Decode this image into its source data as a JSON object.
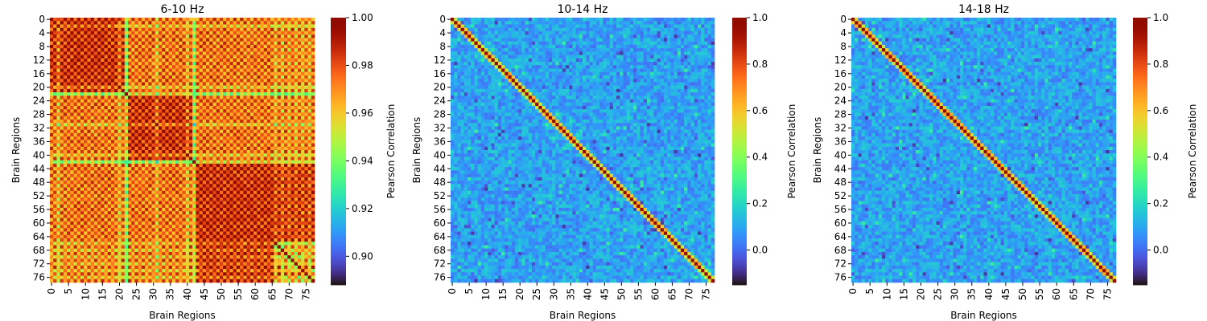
{
  "chart_data": [
    {
      "type": "heatmap",
      "title": "6-10 Hz",
      "xlabel": "Brain Regions",
      "ylabel": "Brain Regions",
      "colorbar_label": "Pearson Correlation",
      "n_regions": 78,
      "colormap": "turbo",
      "vmin": 0.888,
      "vmax": 1.0,
      "colorbar_ticks": [
        "0.90",
        "0.92",
        "0.94",
        "0.96",
        "0.98",
        "1.00"
      ],
      "x_tick_labels": [
        "0",
        "5",
        "10",
        "15",
        "20",
        "25",
        "30",
        "35",
        "40",
        "45",
        "50",
        "55",
        "60",
        "65",
        "70",
        "75"
      ],
      "y_tick_labels": [
        "0",
        "4",
        "8",
        "12",
        "16",
        "20",
        "24",
        "28",
        "32",
        "36",
        "40",
        "44",
        "48",
        "52",
        "56",
        "60",
        "64",
        "68",
        "72",
        "76"
      ],
      "pattern": "block-structured high correlations (~0.97-1.00) with checkerboard bands; lower values (~0.90-0.93) along regions 22, 42 and blocks around 68-76",
      "diagonal_value": 1.0
    },
    {
      "type": "heatmap",
      "title": "10-14 Hz",
      "xlabel": "Brain Regions",
      "ylabel": "Brain Regions",
      "colorbar_label": "Pearson Correlation",
      "n_regions": 78,
      "colormap": "turbo",
      "vmin": -0.15,
      "vmax": 1.0,
      "colorbar_ticks": [
        "0.0",
        "0.2",
        "0.4",
        "0.6",
        "0.8",
        "1.0"
      ],
      "x_tick_labels": [
        "0",
        "5",
        "10",
        "15",
        "20",
        "25",
        "30",
        "35",
        "40",
        "45",
        "50",
        "55",
        "60",
        "65",
        "70",
        "75"
      ],
      "y_tick_labels": [
        "0",
        "4",
        "8",
        "12",
        "16",
        "20",
        "24",
        "28",
        "32",
        "36",
        "40",
        "44",
        "48",
        "52",
        "56",
        "60",
        "64",
        "68",
        "72",
        "76"
      ],
      "pattern": "off-diagonal noise around 0.05-0.15; diagonal = 1.0 with ~0.55 neighbours",
      "diagonal_value": 1.0
    },
    {
      "type": "heatmap",
      "title": "14-18 Hz",
      "xlabel": "Brain Regions",
      "ylabel": "Brain Regions",
      "colorbar_label": "Pearson Correlation",
      "n_regions": 78,
      "colormap": "turbo",
      "vmin": -0.15,
      "vmax": 1.0,
      "colorbar_ticks": [
        "0.0",
        "0.2",
        "0.4",
        "0.6",
        "0.8",
        "1.0"
      ],
      "x_tick_labels": [
        "0",
        "5",
        "10",
        "15",
        "20",
        "25",
        "30",
        "35",
        "40",
        "45",
        "50",
        "55",
        "60",
        "65",
        "70",
        "75"
      ],
      "y_tick_labels": [
        "0",
        "4",
        "8",
        "12",
        "16",
        "20",
        "24",
        "28",
        "32",
        "36",
        "40",
        "44",
        "48",
        "52",
        "56",
        "60",
        "64",
        "68",
        "72",
        "76"
      ],
      "pattern": "off-diagonal noise around 0.0-0.15; diagonal = 1.0 with ~0.55 neighbours",
      "diagonal_value": 1.0
    }
  ]
}
